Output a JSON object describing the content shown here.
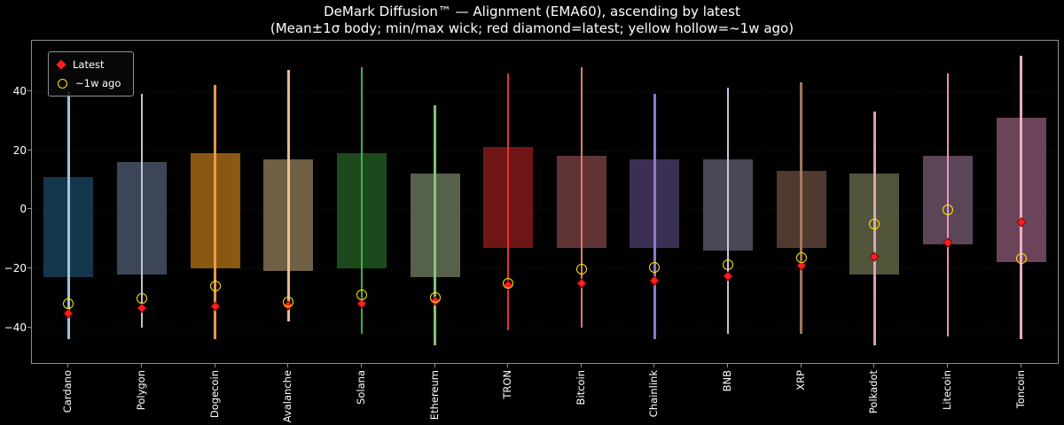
{
  "title": "DeMark Diffusion™ — Alignment (EMA60), ascending by latest",
  "subtitle": "(Mean±1σ body; min/max wick; red diamond=latest; yellow hollow=~1w ago)",
  "legend": {
    "latest_label": "Latest",
    "week_label": "~1w ago"
  },
  "colors": {
    "background": "#000000",
    "axis": "#8f8f8f",
    "text": "#ffffff",
    "latest_marker": "#ff1f1f",
    "week_marker": "#ffe600"
  },
  "chart_data": {
    "type": "candlestick-summary",
    "title": "DeMark Diffusion™ — Alignment (EMA60), ascending by latest",
    "subtitle": "(Mean±1σ body; min/max wick; red diamond=latest; yellow hollow=~1w ago)",
    "ylim": [
      -52,
      57
    ],
    "yticks": [
      40,
      20,
      0,
      -20,
      -40
    ],
    "legend_position": "upper-left",
    "grid": "off",
    "body_meaning": "mean±1σ",
    "wick_meaning": "min/max",
    "series": [
      {
        "name": "Cardano",
        "body": [
          -23,
          11
        ],
        "wick": [
          -44,
          40
        ],
        "latest": -35.3,
        "week_ago": -31.8,
        "body_color": "#15374d",
        "wick_color": "#a9cbe4"
      },
      {
        "name": "Polygon",
        "body": [
          -22,
          16
        ],
        "wick": [
          -40,
          39
        ],
        "latest": -33.4,
        "week_ago": -30.1,
        "body_color": "#3d4656",
        "wick_color": "#c9cadd"
      },
      {
        "name": "Dogecoin",
        "body": [
          -20,
          19
        ],
        "wick": [
          -44,
          42
        ],
        "latest": -32.8,
        "week_ago": -26.0,
        "body_color": "#8a5812",
        "wick_color": "#f2a14e"
      },
      {
        "name": "Avalanche",
        "body": [
          -21,
          17
        ],
        "wick": [
          -38,
          47
        ],
        "latest": -32.6,
        "week_ago": -31.3,
        "body_color": "#6f5f45",
        "wick_color": "#f3c497"
      },
      {
        "name": "Solana",
        "body": [
          -20,
          19
        ],
        "wick": [
          -42,
          48
        ],
        "latest": -31.9,
        "week_ago": -28.8,
        "body_color": "#1d4a1d",
        "wick_color": "#49b44e"
      },
      {
        "name": "Ethereum",
        "body": [
          -23,
          12
        ],
        "wick": [
          -46,
          35
        ],
        "latest": -31.1,
        "week_ago": -29.9,
        "body_color": "#566149",
        "wick_color": "#8cc97d"
      },
      {
        "name": "TRON",
        "body": [
          -13,
          21
        ],
        "wick": [
          -41,
          46
        ],
        "latest": -25.7,
        "week_ago": -25.0,
        "body_color": "#701616",
        "wick_color": "#e63b33"
      },
      {
        "name": "Bitcoin",
        "body": [
          -13,
          18
        ],
        "wick": [
          -40,
          48
        ],
        "latest": -25.0,
        "week_ago": -20.4,
        "body_color": "#603434",
        "wick_color": "#e87f70"
      },
      {
        "name": "Chainlink",
        "body": [
          -13,
          17
        ],
        "wick": [
          -44,
          39
        ],
        "latest": -24.3,
        "week_ago": -19.8,
        "body_color": "#3b3054",
        "wick_color": "#9a7bd4"
      },
      {
        "name": "BNB",
        "body": [
          -14,
          17
        ],
        "wick": [
          -42,
          41
        ],
        "latest": -22.8,
        "week_ago": -18.9,
        "body_color": "#4b4757",
        "wick_color": "#d4cbe8"
      },
      {
        "name": "XRP",
        "body": [
          -13,
          13
        ],
        "wick": [
          -42,
          43
        ],
        "latest": -19.1,
        "week_ago": -16.5,
        "body_color": "#50392f",
        "wick_color": "#ab7a65"
      },
      {
        "name": "Polkadot",
        "body": [
          -22,
          12
        ],
        "wick": [
          -46,
          33
        ],
        "latest": -16.0,
        "week_ago": -4.9,
        "body_color": "#53553b",
        "wick_color": "#e3a8bf"
      },
      {
        "name": "Litecoin",
        "body": [
          -12,
          18
        ],
        "wick": [
          -43,
          46
        ],
        "latest": -11.2,
        "week_ago": -0.3,
        "body_color": "#5b4556",
        "wick_color": "#ef99cb"
      },
      {
        "name": "Toncoin",
        "body": [
          -18,
          31
        ],
        "wick": [
          -44,
          52
        ],
        "latest": -4.3,
        "week_ago": -16.7,
        "body_color": "#6c4459",
        "wick_color": "#f3b6ce"
      }
    ]
  }
}
